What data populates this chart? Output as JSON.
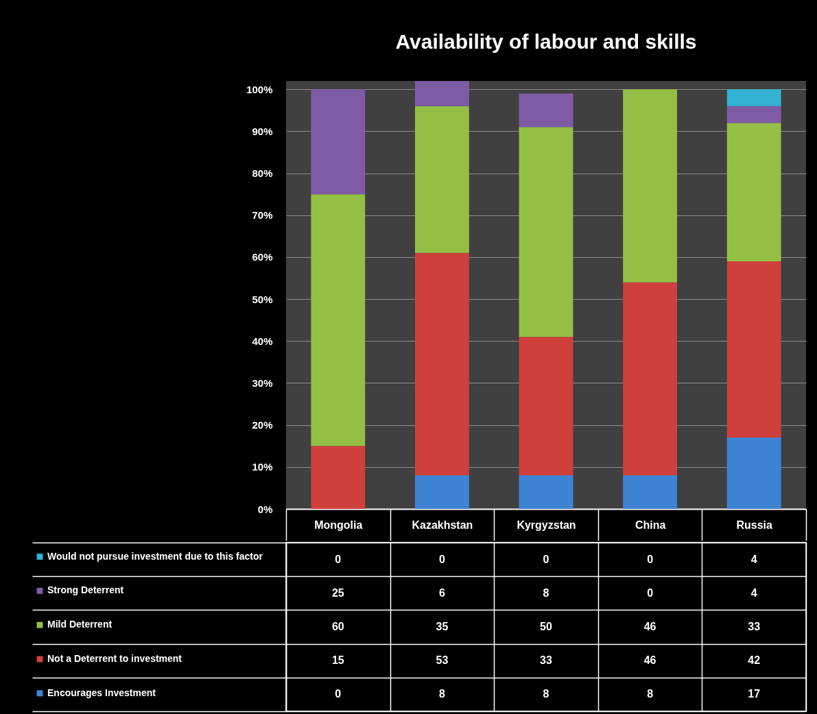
{
  "chart_data": {
    "type": "bar",
    "title": "Availability of labour and skills",
    "stacked": true,
    "categories": [
      "Mongolia",
      "Kazakhstan",
      "Kyrgyzstan",
      "China",
      "Russia"
    ],
    "series": [
      {
        "name": "Encourages Investment",
        "color": "#3f84d4",
        "values": [
          0,
          8,
          8,
          8,
          17
        ]
      },
      {
        "name": "Not a Deterrent to investment",
        "color": "#cf3f3b",
        "values": [
          15,
          53,
          33,
          46,
          42
        ]
      },
      {
        "name": "Mild Deterrent",
        "color": "#94bf45",
        "values": [
          60,
          35,
          50,
          46,
          33
        ]
      },
      {
        "name": "Strong Deterrent",
        "color": "#7f5ba6",
        "values": [
          25,
          6,
          8,
          0,
          4
        ]
      },
      {
        "name": "Would not pursue investment due to this factor",
        "color": "#33b2d3",
        "values": [
          0,
          0,
          0,
          0,
          4
        ]
      }
    ],
    "ylim": [
      0,
      102
    ],
    "yticks": [
      {
        "value": 0,
        "label": "0%"
      },
      {
        "value": 10,
        "label": "10%"
      },
      {
        "value": 20,
        "label": "20%"
      },
      {
        "value": 30,
        "label": "30%"
      },
      {
        "value": 40,
        "label": "40%"
      },
      {
        "value": 50,
        "label": "50%"
      },
      {
        "value": 60,
        "label": "60%"
      },
      {
        "value": 70,
        "label": "70%"
      },
      {
        "value": 80,
        "label": "80%"
      },
      {
        "value": 90,
        "label": "90%"
      },
      {
        "value": 100,
        "label": "100%"
      }
    ],
    "grid": "y",
    "legend": "bottom",
    "data_labels": true
  }
}
